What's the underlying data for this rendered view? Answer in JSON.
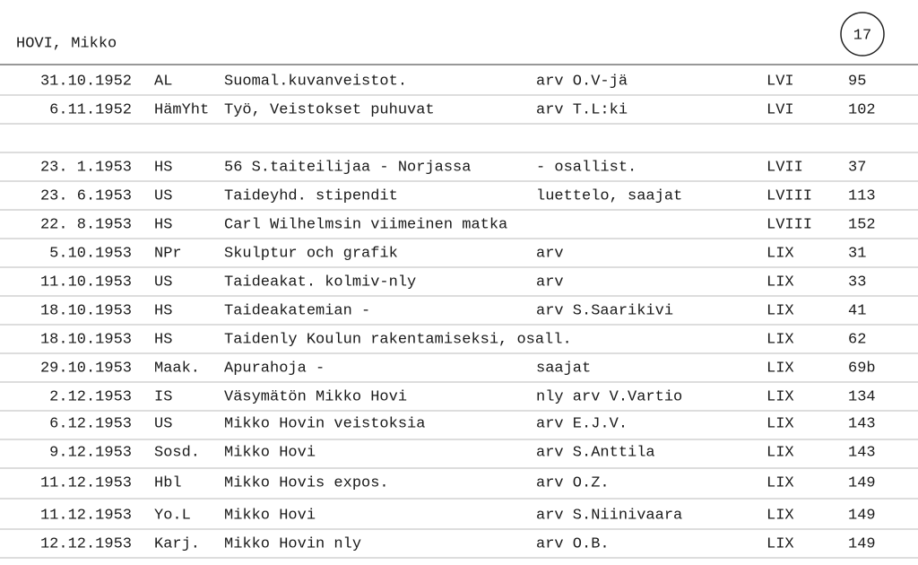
{
  "header": {
    "name": "HOVI, Mikko",
    "card_number": "17"
  },
  "rows": [
    {
      "date": "31.10.1952",
      "source": "AL",
      "title": "Suomal.kuvanveistot.",
      "note": "arv O.V-jä",
      "volume": "LVI",
      "page": "95"
    },
    {
      "date": "6.11.1952",
      "source": "HämYht",
      "title": "Työ, Veistokset puhuvat",
      "note": "arv T.L:ki",
      "volume": "LVI",
      "page": "102"
    },
    {
      "date": "23. 1.1953",
      "source": "HS",
      "title": "56 S.taiteilijaa - Norjassa",
      "note": "- osallist.",
      "volume": "LVII",
      "page": "37"
    },
    {
      "date": "23. 6.1953",
      "source": "US",
      "title": "Taideyhd. stipendit",
      "note": "luettelo, saajat",
      "volume": "LVIII",
      "page": "113"
    },
    {
      "date": "22. 8.1953",
      "source": "HS",
      "title": "Carl Wilhelmsin viimeinen matka",
      "volume": "LVIII",
      "page": "152"
    },
    {
      "date": "5.10.1953",
      "source": "NPr",
      "title": "Skulptur och grafik",
      "note": "arv",
      "volume": "LIX",
      "page": "31"
    },
    {
      "date": "11.10.1953",
      "source": "US",
      "title": "Taideakat. kolmiv-nly",
      "note": "arv",
      "volume": "LIX",
      "page": "33"
    },
    {
      "date": "18.10.1953",
      "source": "HS",
      "title": "Taideakatemian -",
      "note": "arv S.Saarikivi",
      "volume": "LIX",
      "page": "41"
    },
    {
      "date": "18.10.1953",
      "source": "HS",
      "title": "Taidenly Koulun rakentamiseksi, osall.",
      "volume": "LIX",
      "page": "62"
    },
    {
      "date": "29.10.1953",
      "source": "Maak.",
      "title": "Apurahoja -",
      "note": "saajat",
      "volume": "LIX",
      "page": "69b"
    },
    {
      "date": "2.12.1953",
      "source": "IS",
      "title": "Väsymätön Mikko Hovi",
      "note": "nly arv V.Vartio",
      "volume": "LIX",
      "page": "134"
    },
    {
      "date": "6.12.1953",
      "source": "US",
      "title": "Mikko Hovin veistoksia",
      "note": "arv E.J.V.",
      "volume": "LIX",
      "page": "143"
    },
    {
      "date": "9.12.1953",
      "source": "Sosd.",
      "title": "Mikko Hovi",
      "note": "arv S.Anttila",
      "volume": "LIX",
      "page": "143"
    },
    {
      "date": "11.12.1953",
      "source": "Hbl",
      "title": "Mikko Hovis expos.",
      "note": "arv O.Z.",
      "volume": "LIX",
      "page": "149"
    },
    {
      "date": "11.12.1953",
      "source": "Yo.L",
      "title": "Mikko Hovi",
      "note": "arv S.Niinivaara",
      "volume": "LIX",
      "page": "149"
    },
    {
      "date": "12.12.1953",
      "source": "Karj.",
      "title": "Mikko Hovin nly",
      "note": "arv O.B.",
      "volume": "LIX",
      "page": "149"
    }
  ]
}
